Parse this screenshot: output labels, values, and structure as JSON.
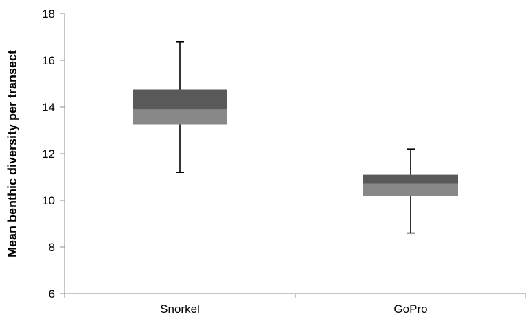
{
  "chart_data": {
    "type": "box",
    "title": "",
    "xlabel": "",
    "ylabel": "Mean benthic diversity per transect",
    "ylim": [
      6,
      18
    ],
    "yticks": [
      6,
      8,
      10,
      12,
      14,
      16,
      18
    ],
    "categories": [
      "Snorkel",
      "GoPro"
    ],
    "boxes": [
      {
        "category": "Snorkel",
        "min": 11.2,
        "q1": 13.25,
        "median": 13.9,
        "q3": 14.75,
        "max": 16.8
      },
      {
        "category": "GoPro",
        "min": 8.6,
        "q1": 10.2,
        "median": 10.72,
        "q3": 11.1,
        "max": 12.2
      }
    ],
    "grid": false,
    "legend": "none",
    "colors": {
      "upper_box": "#595959",
      "lower_box": "#888888",
      "axis": "#8c8c8c",
      "whisker": "#000000"
    }
  }
}
